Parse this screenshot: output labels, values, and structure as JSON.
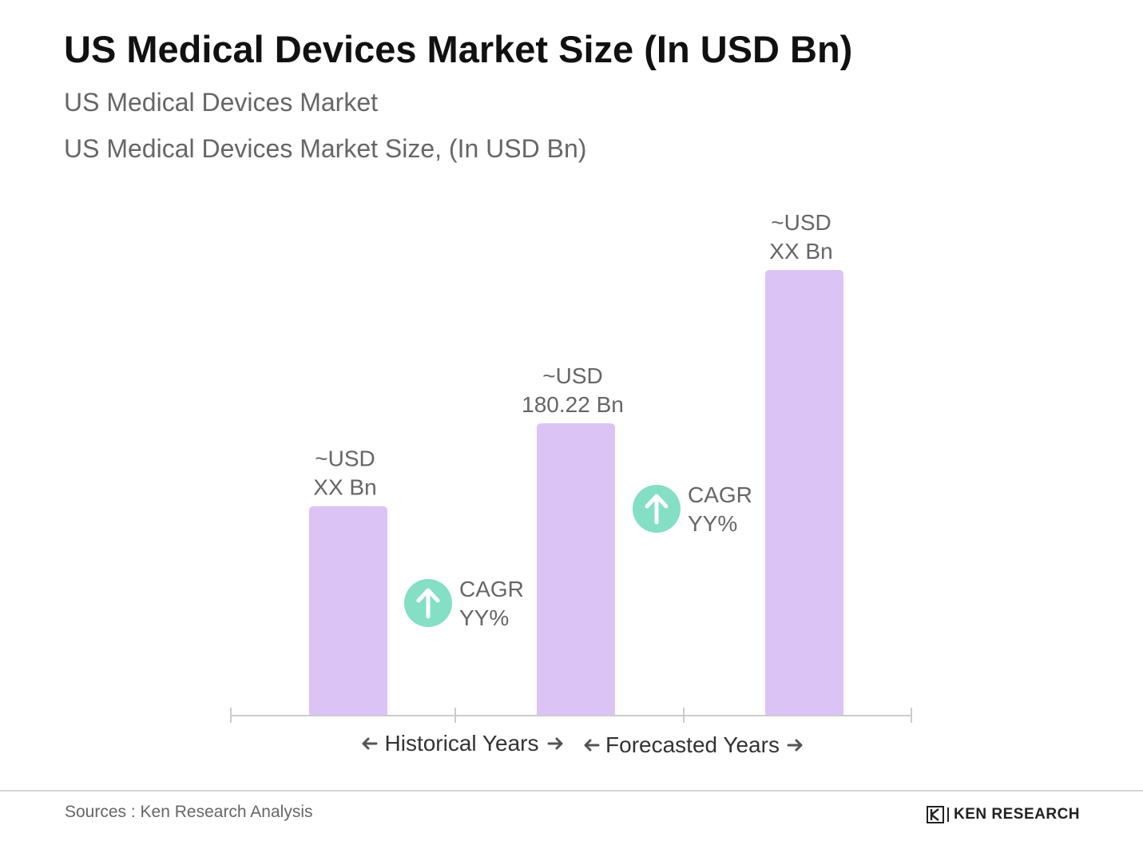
{
  "title": "US Medical Devices Market Size (In USD Bn)",
  "subtitle_1": "US Medical Devices Market",
  "subtitle_2": "US Medical Devices Market Size, (In USD Bn)",
  "source": "Sources : Ken Research Analysis",
  "logo_text": "KEN RESEARCH",
  "colors": {
    "bar": "#dcc3f6",
    "cagr_badge": "#84dfc4",
    "axis": "#cccccc",
    "text": "#666666"
  },
  "chart_data": {
    "type": "bar",
    "title": "US Medical Devices Market Size (In USD Bn)",
    "ylabel": "",
    "xlabel": "",
    "grid": false,
    "categories": [
      "",
      "",
      ""
    ],
    "values": [
      129,
      180.22,
      275
    ],
    "ylim": [
      0,
      275
    ],
    "value_labels": [
      [
        "~USD",
        "XX Bn"
      ],
      [
        "~USD",
        "180.22 Bn"
      ],
      [
        "~USD",
        "XX Bn"
      ]
    ],
    "cagr_annotations": [
      {
        "between": [
          0,
          1
        ],
        "lines": [
          "CAGR",
          "YY%"
        ],
        "icon": "arrow-up-icon"
      },
      {
        "between": [
          1,
          2
        ],
        "lines": [
          "CAGR",
          "YY%"
        ],
        "icon": "arrow-up-icon"
      }
    ],
    "periods": [
      {
        "label": "Historical Years"
      },
      {
        "label": "Forecasted Years"
      }
    ]
  }
}
